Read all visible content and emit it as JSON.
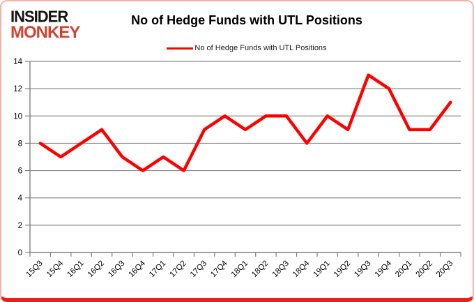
{
  "logo": {
    "line1": "INSIDER",
    "line2": "MONKEY",
    "text_color": "#171313",
    "accent_color": "#cf4431"
  },
  "header": {
    "title": "No of Hedge Funds with UTL Positions"
  },
  "legend": {
    "label": "No of Hedge Funds with UTL Positions"
  },
  "chart_data": {
    "type": "line",
    "title": "No of Hedge Funds with UTL Positions",
    "categories": [
      "15Q3",
      "15Q4",
      "16Q1",
      "16Q2",
      "16Q3",
      "16Q4",
      "17Q1",
      "17Q2",
      "17Q3",
      "17Q4",
      "18Q1",
      "18Q2",
      "18Q3",
      "18Q4",
      "19Q1",
      "19Q2",
      "19Q3",
      "19Q4",
      "20Q1",
      "20Q2",
      "20Q3"
    ],
    "series": [
      {
        "name": "No of Hedge Funds with UTL Positions",
        "values": [
          8,
          7,
          8,
          9,
          7,
          6,
          7,
          6,
          9,
          10,
          9,
          10,
          10,
          8,
          10,
          9,
          13,
          12,
          9,
          9,
          11
        ],
        "color": "#ff0000"
      }
    ],
    "xlabel": "",
    "ylabel": "",
    "ylim": [
      0,
      14
    ],
    "ytick_step": 2,
    "grid": true,
    "legend_position": "top-center",
    "x_label_rotation": -45
  },
  "colors": {
    "grid": "#8c8c8c",
    "axis": "#7f7f7f",
    "tick_label": "#000000",
    "frame_side": "#f2b2a9",
    "frame_bottom": "#ee2015",
    "background": "#ffffff"
  }
}
